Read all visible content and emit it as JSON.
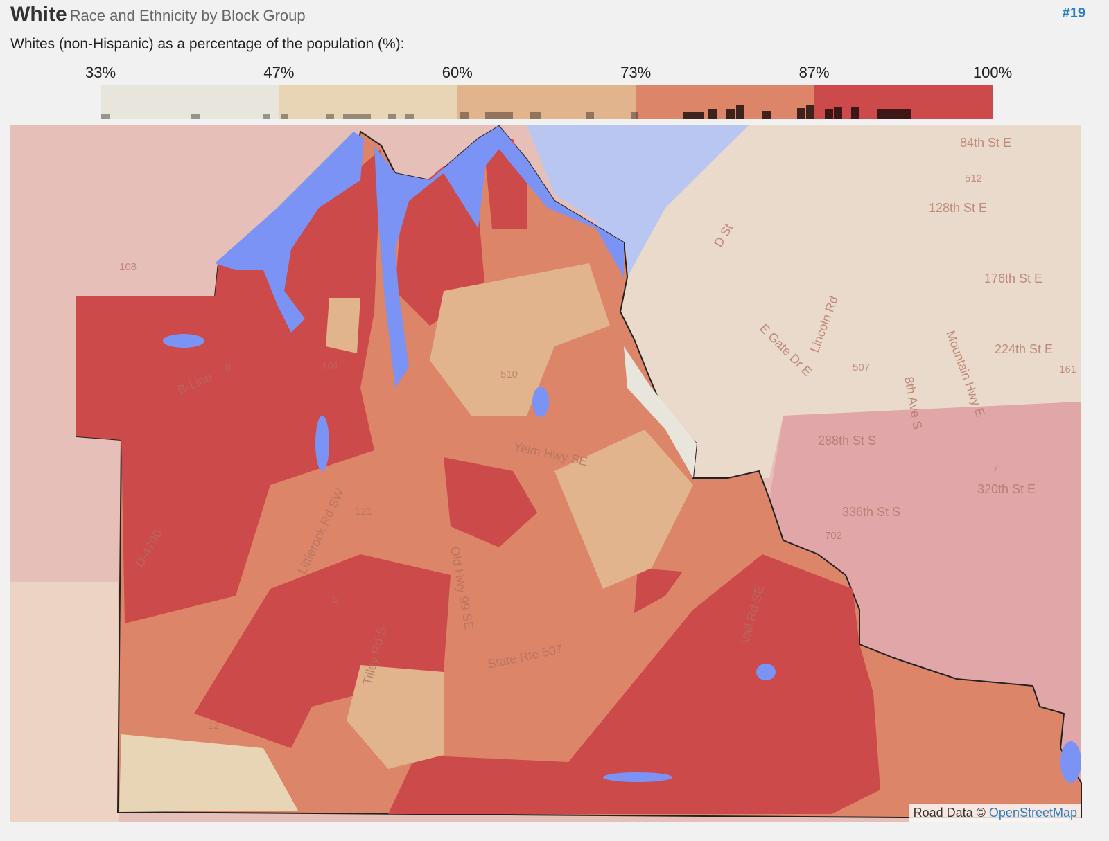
{
  "header": {
    "title": "White",
    "subtitle": "Race and Ethnicity by Block Group",
    "rank": "#19",
    "description": "Whites (non-Hispanic) as a percentage of the population (%):"
  },
  "legend": {
    "ticks": [
      "33%",
      "47%",
      "60%",
      "73%",
      "87%",
      "100%"
    ],
    "colors": [
      "#e8e5dc",
      "#e8d5b6",
      "#e2b48e",
      "#dd8568",
      "#cc4a4a"
    ]
  },
  "map": {
    "roads": [
      "B-Line",
      "Littlerock Rd SW",
      "Old Hwy 99 SE",
      "Yelm Hwy SE",
      "State Rte 507",
      "Tilley Rd S",
      "Vail Rd SE",
      "336th St S",
      "320th St E",
      "288th St S",
      "224th St E",
      "176th St E",
      "128th St E",
      "84th St E",
      "D-4700",
      "D St",
      "E Gate Dr E",
      "Lincoln Rd",
      "Mountain Hwy E",
      "8th Ave S"
    ],
    "shields": [
      "108",
      "8",
      "101",
      "121",
      "5",
      "12",
      "507",
      "510",
      "702",
      "7",
      "161",
      "512"
    ],
    "attribution": "Road Data ©",
    "attribution_link": "OpenStreetMap"
  }
}
